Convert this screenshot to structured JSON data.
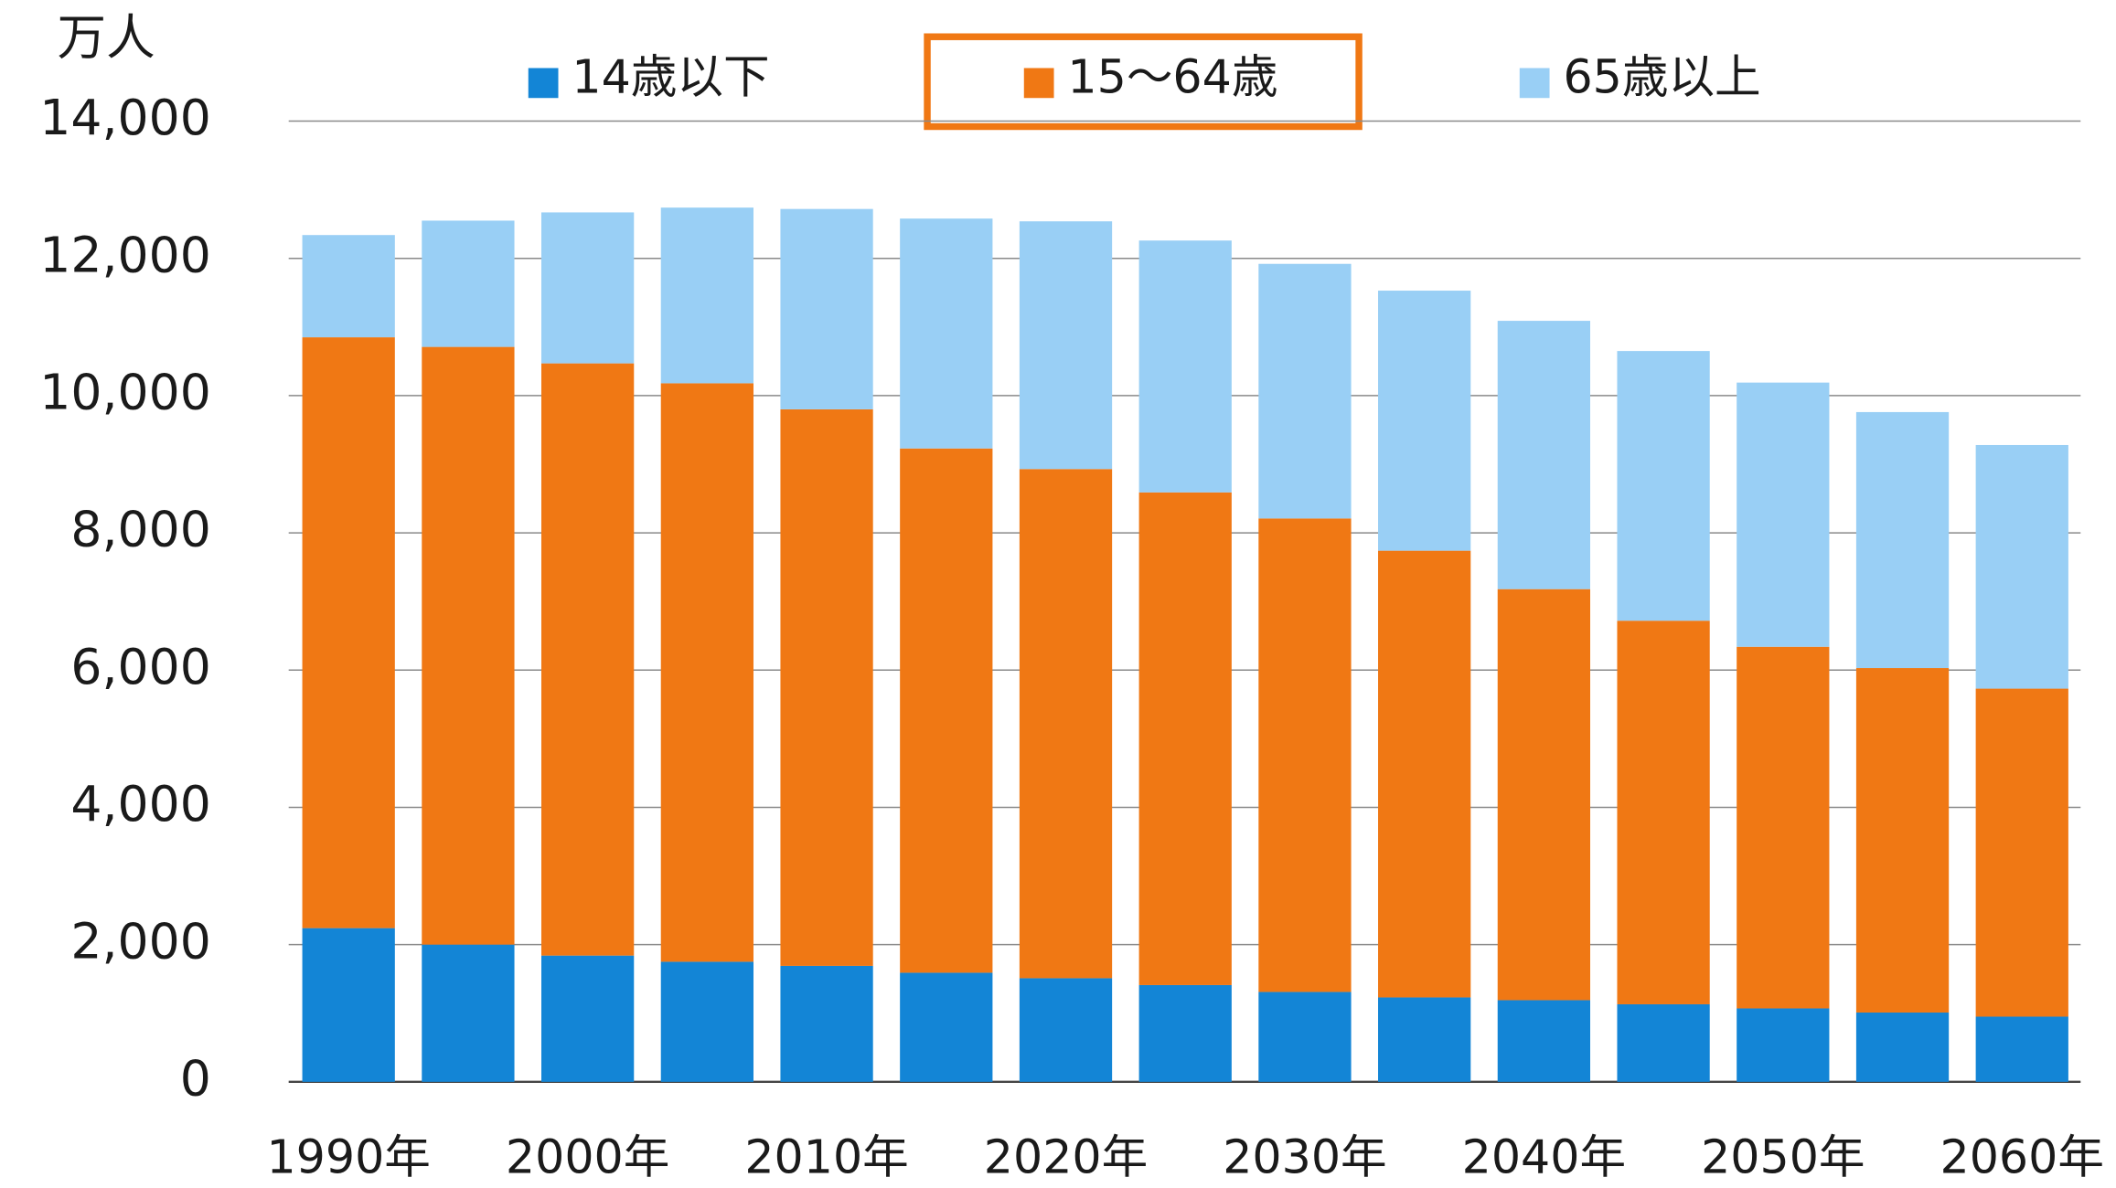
{
  "chart_data": {
    "type": "stacked_bar",
    "y_label": "万人",
    "categories": [
      "1990年",
      null,
      "2000年",
      null,
      "2010年",
      null,
      "2020年",
      null,
      "2030年",
      null,
      "2040年",
      null,
      "2050年",
      null,
      "2060年"
    ],
    "series": [
      {
        "name": "14歳以下",
        "color": "#1385d6",
        "values": [
          2240,
          2000,
          1840,
          1750,
          1690,
          1590,
          1510,
          1410,
          1310,
          1230,
          1190,
          1130,
          1070,
          1010,
          950
        ]
      },
      {
        "name": "15〜64歳",
        "color": "#f07814",
        "values": [
          8610,
          8710,
          8630,
          8430,
          8110,
          7640,
          7420,
          7180,
          6900,
          6510,
          5990,
          5590,
          5270,
          5020,
          4780
        ]
      },
      {
        "name": "65歳以上",
        "color": "#99cff5",
        "values": [
          1490,
          1840,
          2200,
          2560,
          2920,
          3350,
          3610,
          3670,
          3710,
          3790,
          3910,
          3930,
          3850,
          3730,
          3550
        ]
      }
    ],
    "ylim": [
      0,
      14000
    ],
    "yticks": [
      0,
      {
        "value": 2000,
        "label": "2,000"
      },
      {
        "value": 4000,
        "label": "4,000"
      },
      {
        "value": 6000,
        "label": "6,000"
      },
      {
        "value": 8000,
        "label": "8,000"
      },
      {
        "value": 10000,
        "label": "10,000"
      },
      {
        "value": 12000,
        "label": "12,000"
      },
      {
        "value": 14000,
        "label": "14,000"
      }
    ],
    "grid": true,
    "legend": "top"
  }
}
